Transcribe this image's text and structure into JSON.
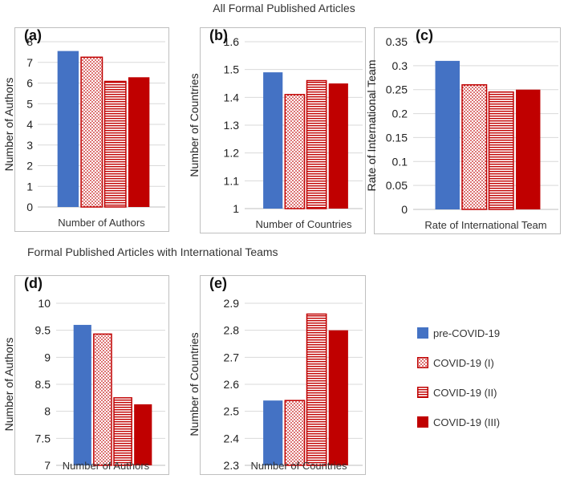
{
  "titles": {
    "top": "All Formal Published Articles",
    "bottom": "Formal Published Articles with International Teams"
  },
  "legend": [
    {
      "key": "pre",
      "label": "pre-COVID-19"
    },
    {
      "key": "c1",
      "label": "COVID-19 (I)"
    },
    {
      "key": "c2",
      "label": "COVID-19 (II)"
    },
    {
      "key": "c3",
      "label": "COVID-19 (III)"
    }
  ],
  "colors": {
    "blue": "#4472C4",
    "red": "#C00000",
    "grid": "#D9D9D9",
    "axis": "#BFBFBF"
  },
  "chart_data": [
    {
      "panel": "(a)",
      "type": "bar",
      "xlabel": "Number of Authors",
      "ylabel": "Number of Authors",
      "ylim": [
        0,
        8
      ],
      "ticks": [
        "0",
        "1",
        "2",
        "3",
        "4",
        "5",
        "6",
        "7",
        "8"
      ],
      "series": [
        {
          "name": "pre-COVID-19",
          "value": 7.55
        },
        {
          "name": "COVID-19 (I)",
          "value": 7.25
        },
        {
          "name": "COVID-19 (II)",
          "value": 6.08
        },
        {
          "name": "COVID-19 (III)",
          "value": 6.28
        }
      ]
    },
    {
      "panel": "(b)",
      "type": "bar",
      "xlabel": "Number of Countries",
      "ylabel": "Number of Countries",
      "ylim": [
        1,
        1.6
      ],
      "ticks": [
        "1",
        "1.1",
        "1.2",
        "1.3",
        "1.4",
        "1.5",
        "1.6"
      ],
      "series": [
        {
          "name": "pre-COVID-19",
          "value": 1.49
        },
        {
          "name": "COVID-19 (I)",
          "value": 1.41
        },
        {
          "name": "COVID-19 (II)",
          "value": 1.46
        },
        {
          "name": "COVID-19 (III)",
          "value": 1.45
        }
      ]
    },
    {
      "panel": "(c)",
      "type": "bar",
      "xlabel": "Rate of International Team",
      "ylabel": "Rate of International Team",
      "ylim": [
        0,
        0.35
      ],
      "ticks": [
        "0",
        "0.05",
        "0.1",
        "0.15",
        "0.2",
        "0.25",
        "0.3",
        "0.35"
      ],
      "series": [
        {
          "name": "pre-COVID-19",
          "value": 0.31
        },
        {
          "name": "COVID-19 (I)",
          "value": 0.26
        },
        {
          "name": "COVID-19 (II)",
          "value": 0.245
        },
        {
          "name": "COVID-19 (III)",
          "value": 0.25
        }
      ]
    },
    {
      "panel": "(d)",
      "type": "bar",
      "xlabel": "Number of Authors",
      "ylabel": "Number of Authors",
      "ylim": [
        7,
        10
      ],
      "ticks": [
        "7",
        "7.5",
        "8",
        "8.5",
        "9",
        "9.5",
        "10"
      ],
      "series": [
        {
          "name": "pre-COVID-19",
          "value": 9.6
        },
        {
          "name": "COVID-19 (I)",
          "value": 9.43
        },
        {
          "name": "COVID-19 (II)",
          "value": 8.25
        },
        {
          "name": "COVID-19 (III)",
          "value": 8.13
        }
      ]
    },
    {
      "panel": "(e)",
      "type": "bar",
      "xlabel": "Number of Countries",
      "ylabel": "Number of Countries",
      "ylim": [
        2.3,
        2.9
      ],
      "ticks": [
        "2.3",
        "2.4",
        "2.5",
        "2.6",
        "2.7",
        "2.8",
        "2.9"
      ],
      "series": [
        {
          "name": "pre-COVID-19",
          "value": 2.54
        },
        {
          "name": "COVID-19 (I)",
          "value": 2.54
        },
        {
          "name": "COVID-19 (II)",
          "value": 2.86
        },
        {
          "name": "COVID-19 (III)",
          "value": 2.8
        }
      ]
    }
  ]
}
